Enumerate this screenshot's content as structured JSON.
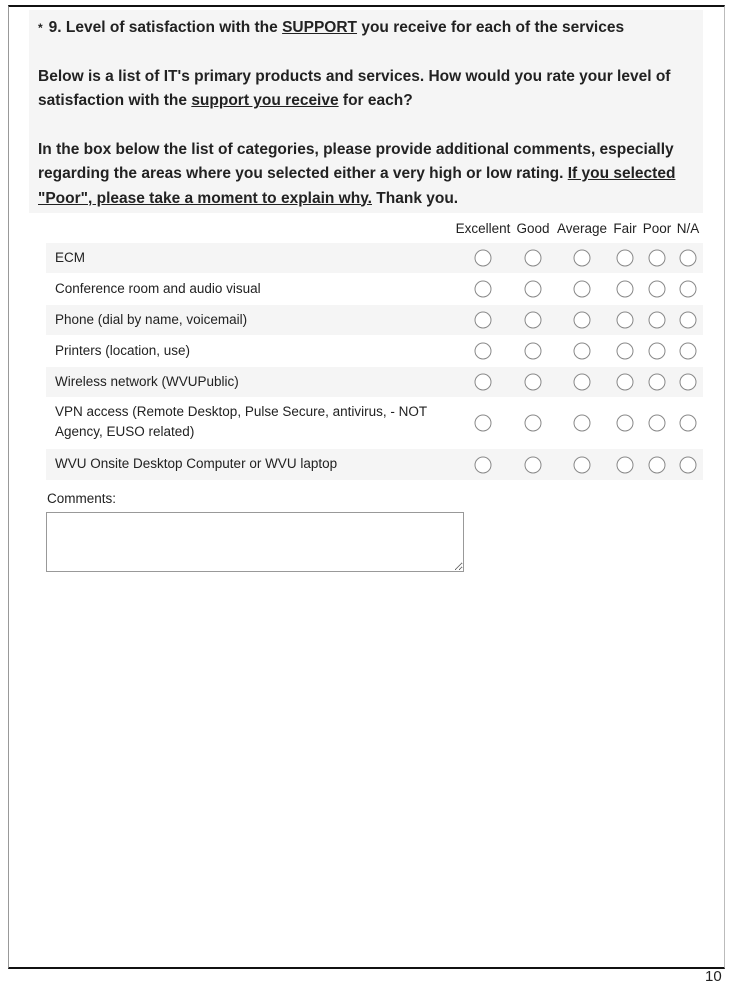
{
  "question": {
    "required_marker": "*",
    "title_prefix": "9. Level of satisfaction with the ",
    "title_underlined": "SUPPORT",
    "title_suffix": " you receive for each of the services",
    "para1_prefix": "Below is a list of IT's primary products and services. How would you rate your level of satisfaction with the ",
    "para1_underlined": "support you receive",
    "para1_suffix": " for each?",
    "para2_prefix": "In the box below the list of categories, please provide additional comments, especially regarding the areas where you selected either a very high or low rating. ",
    "para2_underlined": "If you selected \"Poor\", please take a moment to explain why.",
    "para2_suffix": " Thank you."
  },
  "columns": [
    "Excellent",
    "Good",
    "Average",
    "Fair",
    "Poor",
    "N/A"
  ],
  "rows": [
    {
      "label": "ECM"
    },
    {
      "label": "Conference room and audio visual"
    },
    {
      "label": "Phone (dial by name, voicemail)"
    },
    {
      "label": "Printers (location, use)"
    },
    {
      "label": "Wireless network (WVUPublic)"
    },
    {
      "label": "VPN access (Remote Desktop, Pulse Secure, antivirus, - NOT Agency, EUSO related)"
    },
    {
      "label": "WVU Onsite Desktop Computer or WVU laptop"
    }
  ],
  "comments": {
    "label": "Comments:",
    "value": ""
  },
  "page_number": "10"
}
